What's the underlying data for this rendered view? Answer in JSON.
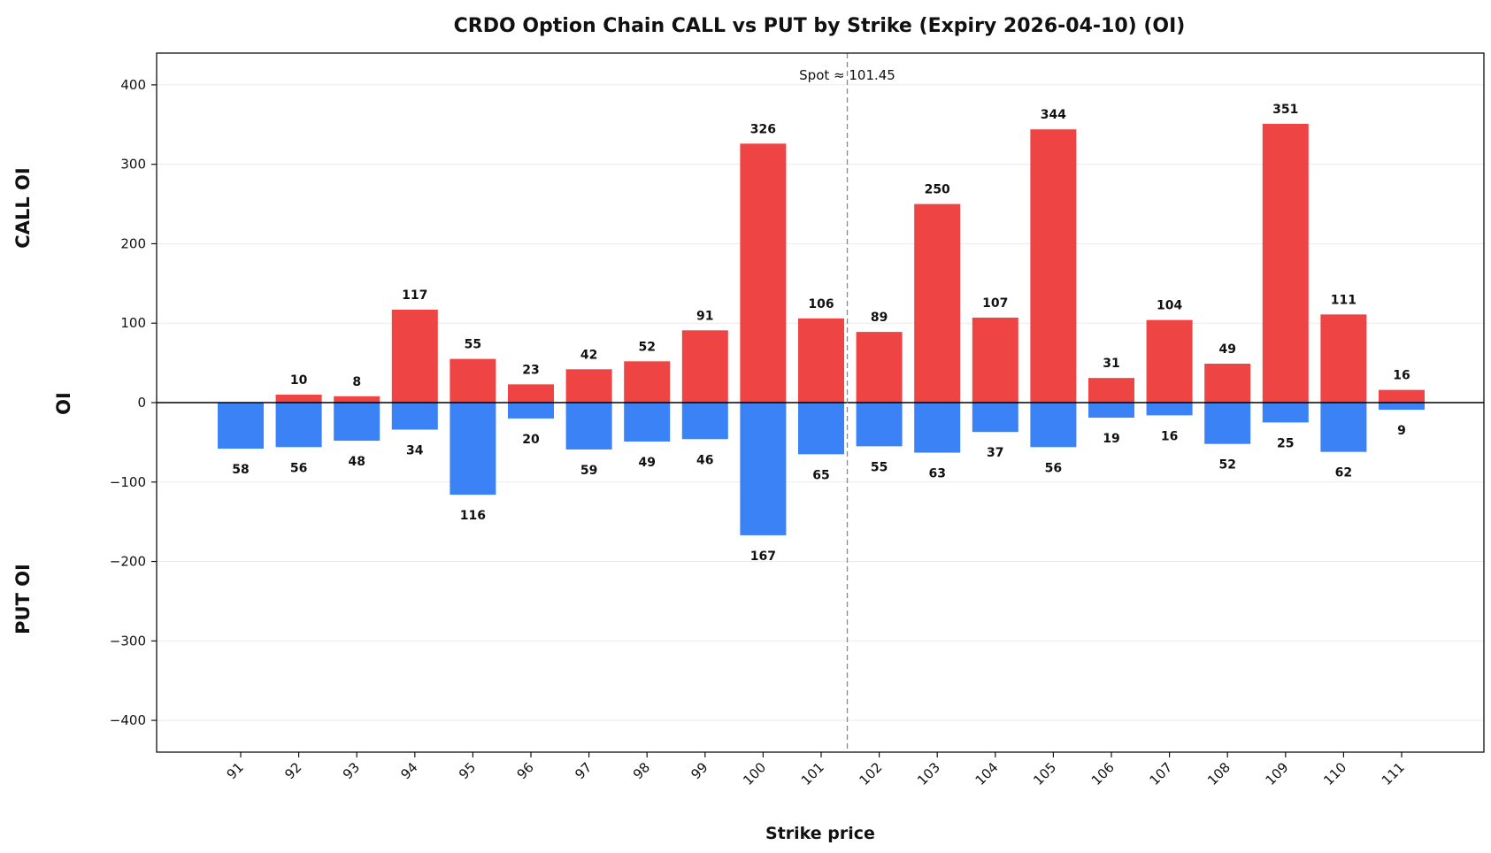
{
  "chart_data": {
    "type": "bar",
    "title": "CRDO Option Chain CALL vs PUT by Strike (Expiry 2026-04-10) (OI)",
    "xlabel": "Strike price",
    "ylabel": "OI",
    "upper_label": "CALL OI",
    "lower_label": "PUT OI",
    "ylim": [
      -440,
      440
    ],
    "yticks": [
      -400,
      -300,
      -200,
      -100,
      0,
      100,
      200,
      300,
      400
    ],
    "categories": [
      "91",
      "92",
      "93",
      "94",
      "95",
      "96",
      "97",
      "98",
      "99",
      "100",
      "101",
      "102",
      "103",
      "104",
      "105",
      "106",
      "107",
      "108",
      "109",
      "110",
      "111"
    ],
    "series": [
      {
        "name": "CALL",
        "color": "#ef4444",
        "values": [
          0,
          10,
          8,
          117,
          55,
          23,
          42,
          52,
          91,
          326,
          106,
          89,
          250,
          107,
          344,
          31,
          104,
          49,
          351,
          111,
          16
        ]
      },
      {
        "name": "PUT",
        "color": "#3b82f6",
        "values": [
          58,
          56,
          48,
          34,
          116,
          20,
          59,
          49,
          46,
          167,
          65,
          55,
          63,
          37,
          56,
          19,
          16,
          52,
          25,
          62,
          9
        ]
      }
    ],
    "call_labels": [
      "",
      "10",
      "8",
      "117",
      "55",
      "23",
      "42",
      "52",
      "91",
      "326",
      "106",
      "89",
      "250",
      "107",
      "344",
      "31",
      "104",
      "49",
      "351",
      "111",
      "16"
    ],
    "put_labels": [
      "58",
      "56",
      "48",
      "34",
      "116",
      "20",
      "59",
      "49",
      "46",
      "167",
      "65",
      "55",
      "63",
      "37",
      "56",
      "19",
      "16",
      "52",
      "25",
      "62",
      "9"
    ],
    "spot": 101.45,
    "spot_label": "Spot ≈ 101.45",
    "grid": true
  }
}
